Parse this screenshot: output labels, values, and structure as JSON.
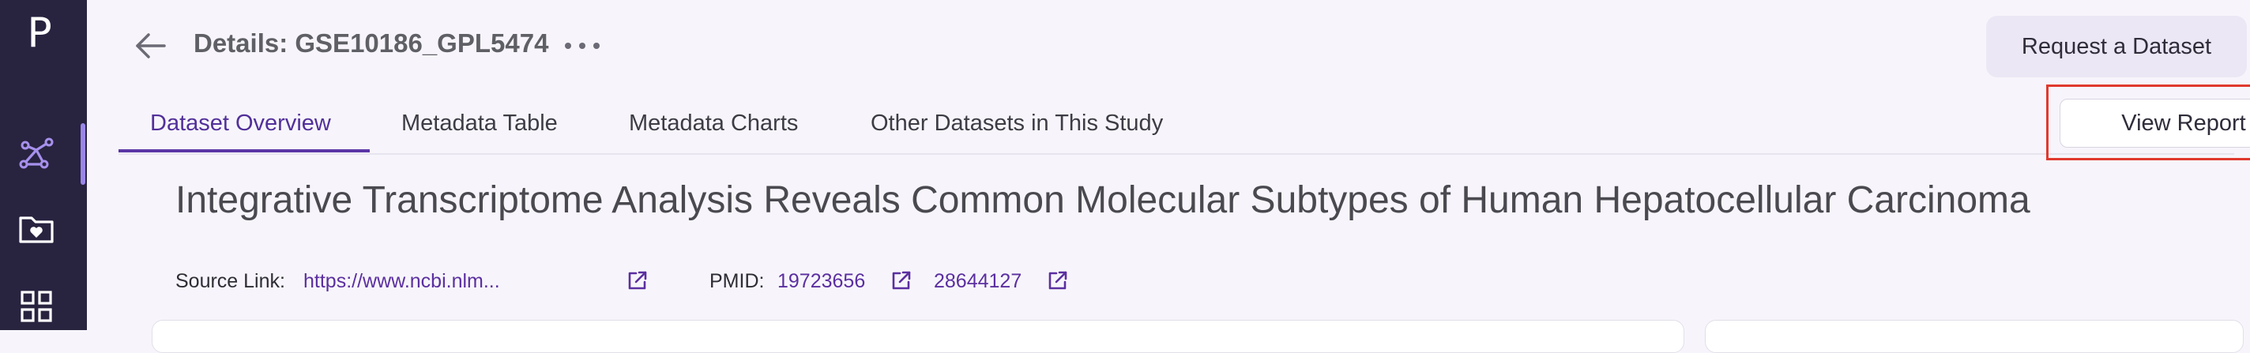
{
  "sidebar": {
    "logo": "P",
    "items": [
      {
        "name": "analysis",
        "icon": "molecule-network-icon",
        "active": true
      },
      {
        "name": "favorites",
        "icon": "folder-heart-icon",
        "active": false
      },
      {
        "name": "apps",
        "icon": "grid-icon",
        "active": false
      }
    ]
  },
  "header": {
    "title": "Details: GSE10186_GPL5474",
    "request_button": "Request a Dataset"
  },
  "tabs": [
    {
      "label": "Dataset Overview",
      "active": true
    },
    {
      "label": "Metadata Table",
      "active": false
    },
    {
      "label": "Metadata Charts",
      "active": false
    },
    {
      "label": "Other Datasets in This Study",
      "active": false
    }
  ],
  "view_report_button": "View Report",
  "study": {
    "title": "Integrative Transcriptome Analysis Reveals Common Molecular Subtypes of Human Hepatocellular Carcinoma",
    "source_label": "Source Link:",
    "source_link": "https://www.ncbi.nlm...",
    "pmid_label": "PMID:",
    "pmids": [
      "19723656",
      "28644127"
    ]
  },
  "colors": {
    "sidebar": "#28233f",
    "accent": "#5b36a6",
    "highlight_box": "#e0392d"
  }
}
